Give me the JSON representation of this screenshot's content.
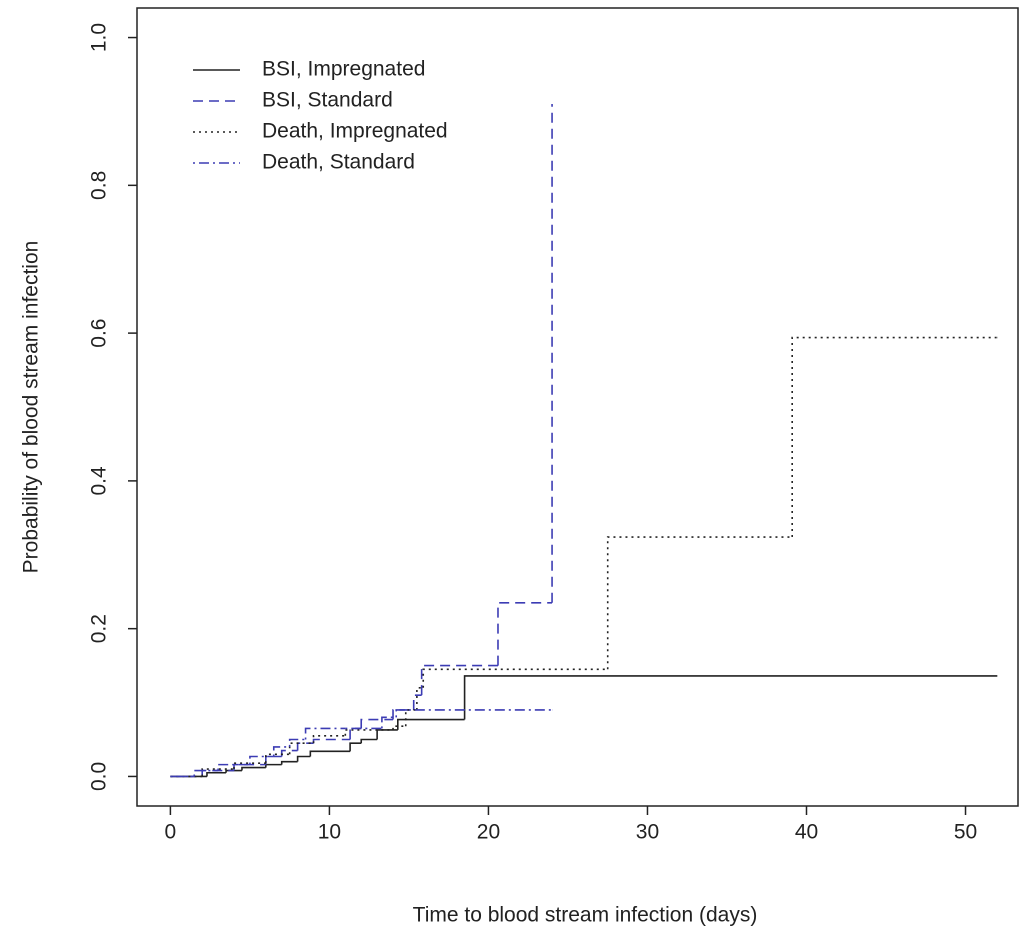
{
  "chart_data": {
    "type": "step",
    "xlabel": "Time to blood stream infection (days)",
    "ylabel": "Probability of blood stream infection",
    "xlim": [
      -2.1,
      53.3
    ],
    "ylim": [
      -0.04,
      1.04
    ],
    "xticks": [
      0,
      10,
      20,
      30,
      40,
      50
    ],
    "yticks": [
      {
        "value": 0,
        "label": "0.0"
      },
      0.2,
      0.4,
      0.6,
      0.8,
      {
        "value": 1,
        "label": "1.0"
      }
    ],
    "legend": "top-left",
    "series": [
      {
        "name": "BSI, Impregnated",
        "color": "#222222",
        "linestyle": "solid",
        "x": [
          0,
          2.3,
          3.5,
          4.5,
          6,
          7,
          8,
          8.8,
          11.3,
          12,
          13,
          14.3,
          18.5,
          52
        ],
        "values": [
          0,
          0.005,
          0.008,
          0.012,
          0.016,
          0.02,
          0.027,
          0.034,
          0.045,
          0.05,
          0.063,
          0.077,
          0.136,
          0.136
        ]
      },
      {
        "name": "BSI, Standard",
        "color": "#3c3cb4",
        "linestyle": "dashed",
        "x": [
          0,
          2,
          4,
          6,
          7,
          8,
          9,
          11.3,
          12,
          14,
          15.3,
          15.8,
          20.6,
          24
        ],
        "values": [
          0,
          0.008,
          0.016,
          0.027,
          0.035,
          0.045,
          0.05,
          0.065,
          0.077,
          0.09,
          0.11,
          0.15,
          0.235,
          0.91
        ]
      },
      {
        "name": "Death, Impregnated",
        "color": "#222222",
        "linestyle": "dotted",
        "x": [
          0,
          2,
          4,
          6,
          7.5,
          9,
          11,
          14,
          14.8,
          15.5,
          15.9,
          27.5,
          39.1,
          52
        ],
        "values": [
          0,
          0.01,
          0.018,
          0.03,
          0.045,
          0.055,
          0.063,
          0.068,
          0.09,
          0.12,
          0.145,
          0.324,
          0.594,
          0.594
        ]
      },
      {
        "name": "Death, Standard",
        "color": "#3c3cb4",
        "linestyle": "dotdash",
        "x": [
          0,
          1.5,
          3,
          5,
          6.5,
          7.5,
          8.5,
          11,
          13.3,
          14.2,
          24
        ],
        "values": [
          0,
          0.008,
          0.016,
          0.027,
          0.04,
          0.05,
          0.065,
          0.065,
          0.08,
          0.09,
          0.09
        ]
      }
    ]
  }
}
